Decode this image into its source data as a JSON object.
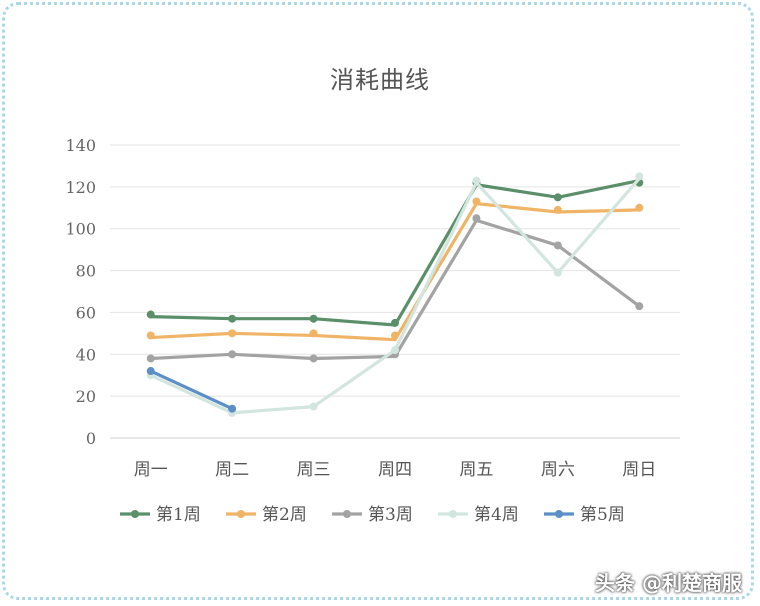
{
  "chart_data": {
    "type": "line",
    "title": "消耗曲线",
    "categories": [
      "周一",
      "周二",
      "周三",
      "周四",
      "周五",
      "周六",
      "周日"
    ],
    "ylim": [
      0,
      140
    ],
    "yticks": [
      0,
      20,
      40,
      60,
      80,
      100,
      120,
      140
    ],
    "grid": true,
    "legend": "bottom",
    "series": [
      {
        "name": "第1周",
        "color": "#5a8f6a",
        "values": [
          58,
          57,
          57,
          54,
          121,
          115,
          123
        ],
        "markers": [
          59,
          57,
          57,
          55,
          122,
          115,
          122
        ]
      },
      {
        "name": "第2周",
        "color": "#f0b466",
        "values": [
          48,
          50,
          49,
          47,
          112,
          108,
          109
        ],
        "markers": [
          49,
          50,
          50,
          49,
          113,
          109,
          110
        ]
      },
      {
        "name": "第3周",
        "color": "#a3a3a3",
        "values": [
          38,
          40,
          38,
          39,
          104,
          92,
          63
        ],
        "markers": [
          38,
          40,
          38,
          40,
          105,
          92,
          63
        ]
      },
      {
        "name": "第4周",
        "color": "#d2e5df",
        "values": [
          30,
          12,
          15,
          42,
          122,
          79,
          124
        ],
        "markers": [
          30,
          12,
          15,
          42,
          123,
          79,
          125
        ]
      },
      {
        "name": "第5周",
        "color": "#5b8fc7",
        "values": [
          32,
          14,
          null,
          null,
          null,
          null,
          null
        ],
        "markers": [
          32,
          14,
          null,
          null,
          null,
          null,
          null
        ]
      }
    ]
  },
  "watermark": "头条 @利楚商服"
}
